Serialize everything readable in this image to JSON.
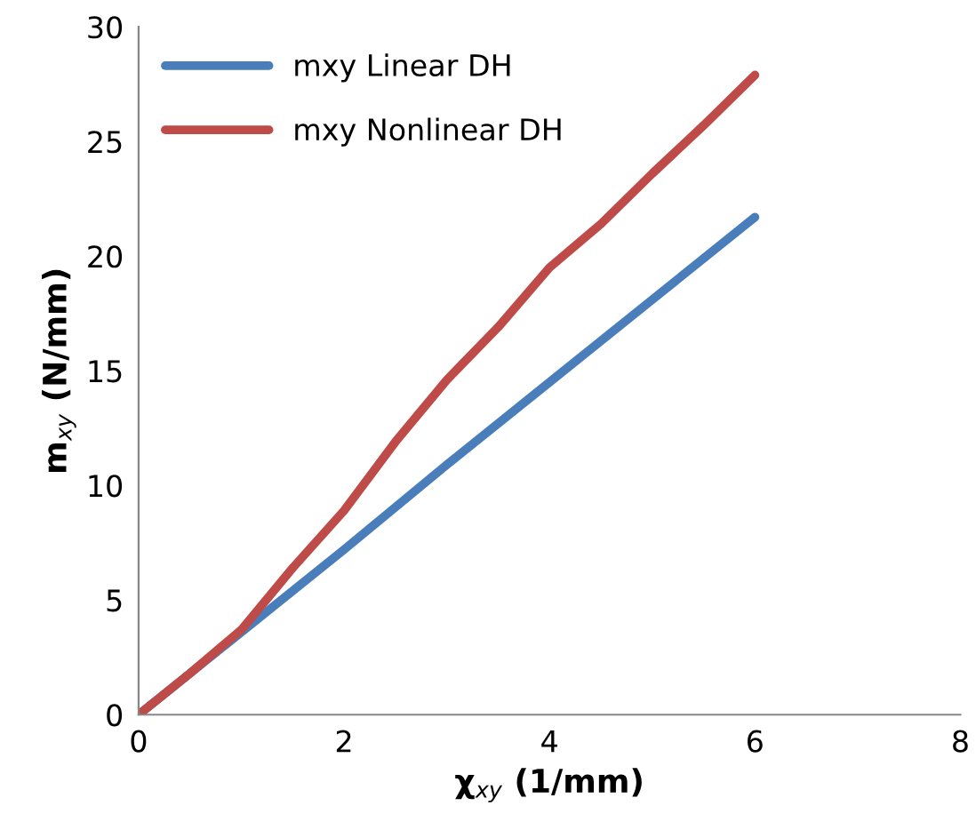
{
  "chart_data": {
    "type": "line",
    "xlabel": "χ$_{xy}$ (1/mm)",
    "ylabel": "m$_{xy}$ (N/mm)",
    "xlim": [
      0,
      8
    ],
    "xticks": [
      0,
      2,
      4,
      6,
      8
    ],
    "ylim": [
      0,
      30
    ],
    "yticks": [
      0,
      5,
      10,
      15,
      20,
      25,
      30
    ],
    "grid": false,
    "legend": "top left",
    "marker": "none",
    "line_style": "solid",
    "series": [
      {
        "name": "mxy Linear DH",
        "color": "#4a7ebb",
        "x": [
          0,
          1,
          2,
          3,
          4,
          5,
          6
        ],
        "values": [
          0,
          3.6,
          7.2,
          10.9,
          14.5,
          18.1,
          21.7
        ]
      },
      {
        "name": "mxy Nonlinear DH",
        "color": "#be4b48",
        "x": [
          0,
          0.5,
          1,
          1.5,
          2,
          2.5,
          3,
          3.5,
          4,
          4.5,
          5,
          5.5,
          6
        ],
        "values": [
          0,
          1.8,
          3.7,
          6.4,
          8.9,
          11.9,
          14.6,
          16.9,
          19.5,
          21.4,
          23.6,
          25.7,
          27.9
        ]
      }
    ]
  }
}
